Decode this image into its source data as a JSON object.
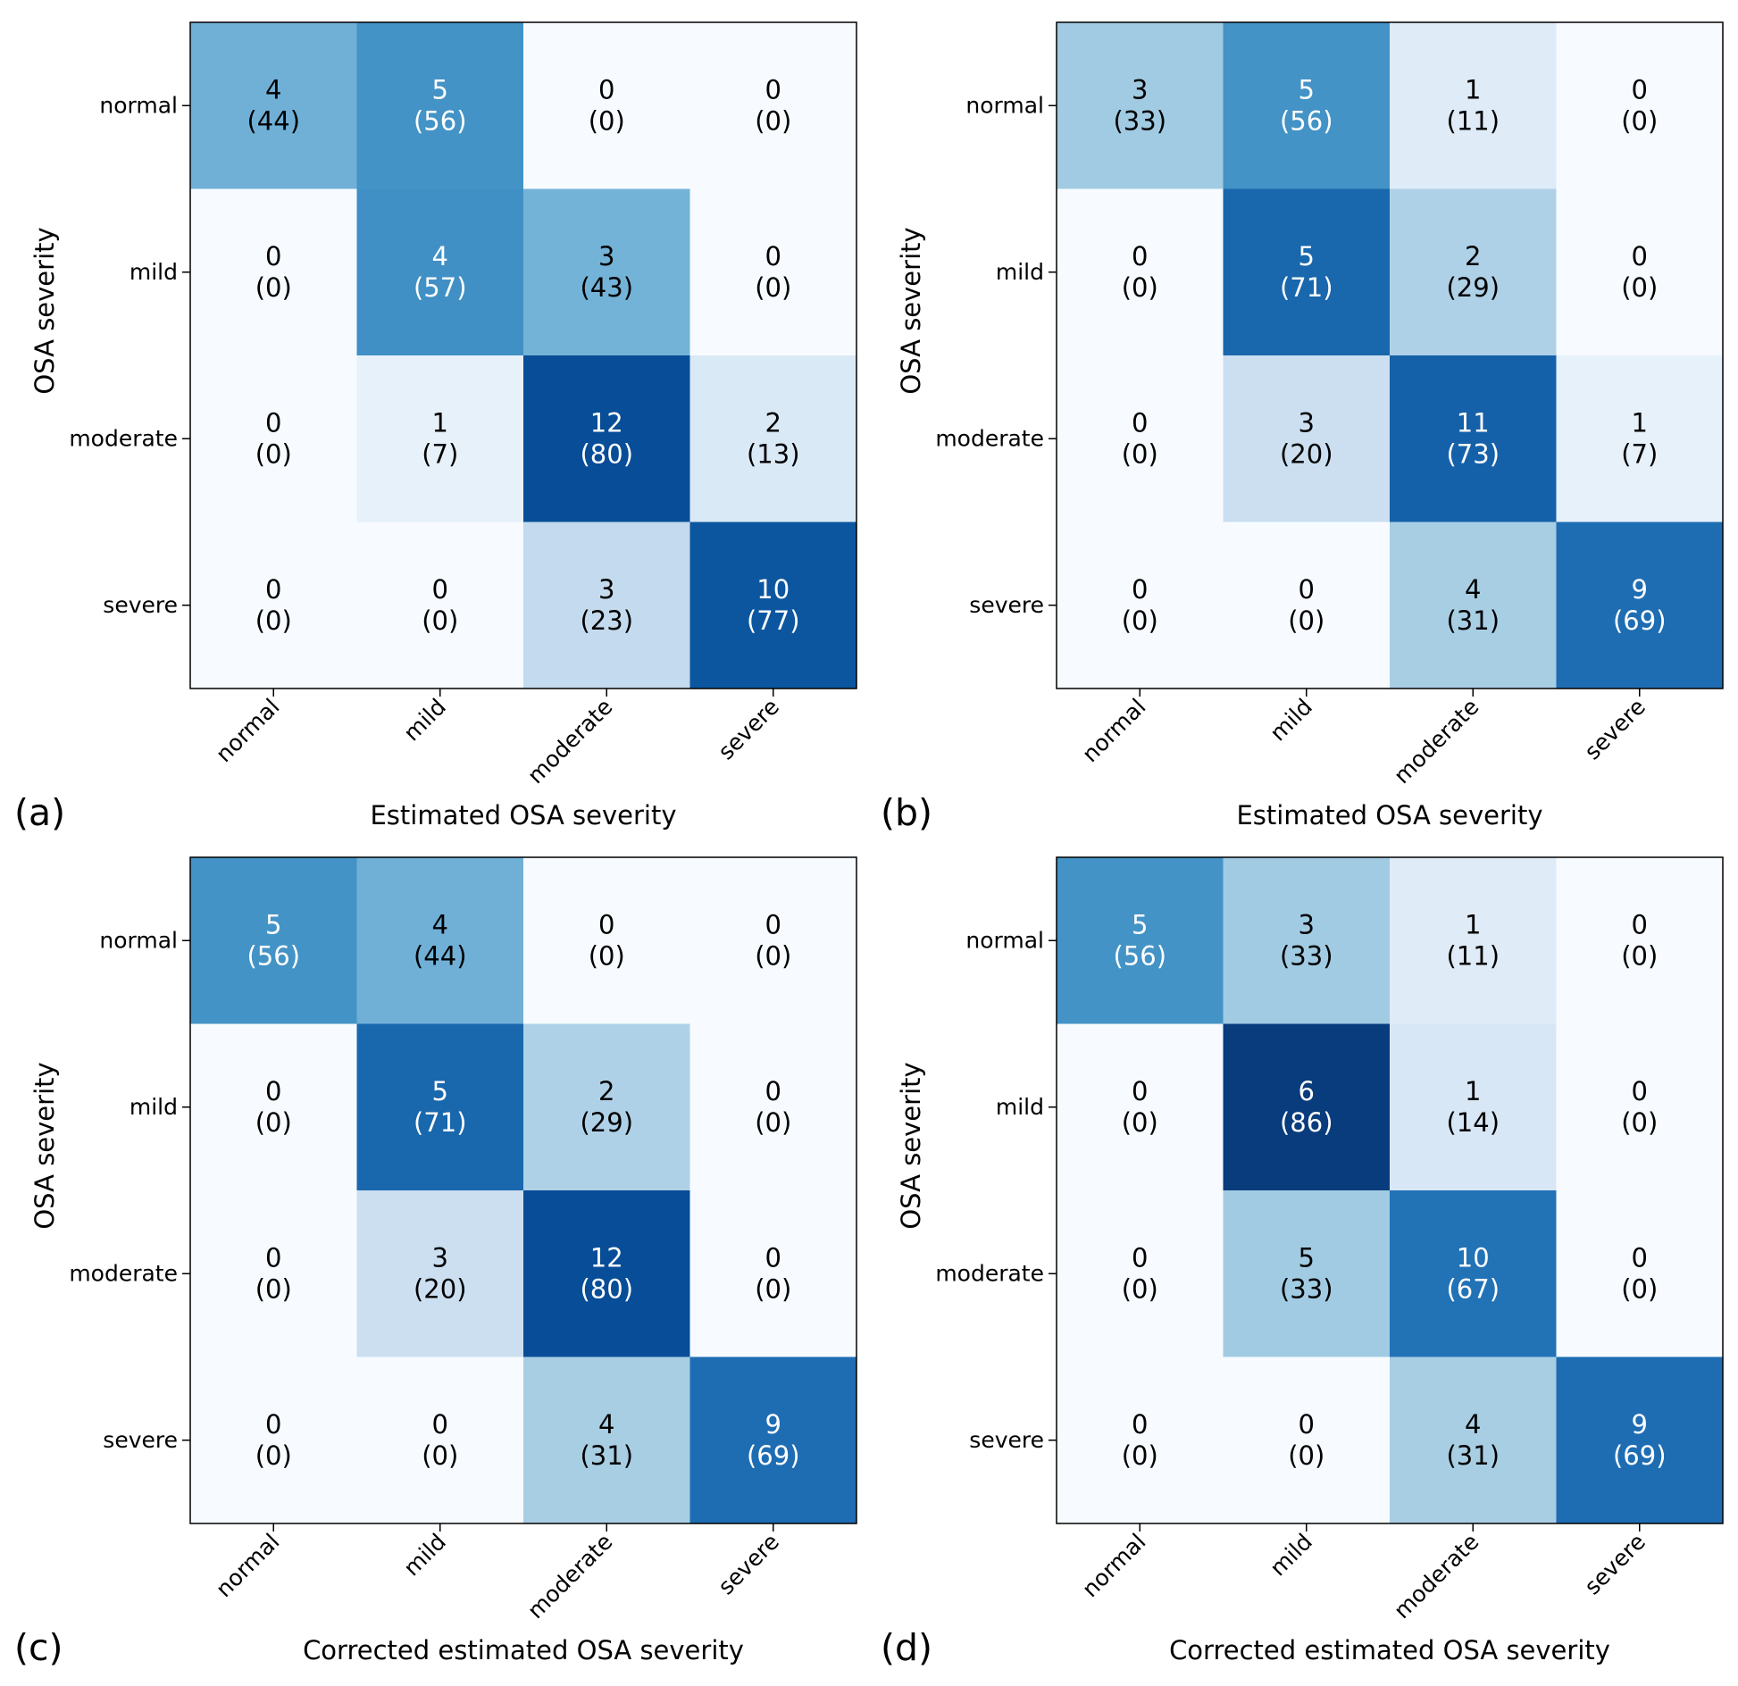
{
  "chart_data": [
    {
      "type": "heatmap",
      "panel_label": "(a)",
      "xlabel": "Estimated OSA severity",
      "ylabel": "OSA severity",
      "x_categories": [
        "normal",
        "mild",
        "moderate",
        "severe"
      ],
      "y_categories": [
        "normal",
        "mild",
        "moderate",
        "severe"
      ],
      "counts": [
        [
          4,
          5,
          0,
          0
        ],
        [
          0,
          4,
          3,
          0
        ],
        [
          0,
          1,
          12,
          2
        ],
        [
          0,
          0,
          3,
          10
        ]
      ],
      "percents": [
        [
          44,
          56,
          0,
          0
        ],
        [
          0,
          57,
          43,
          0
        ],
        [
          0,
          7,
          80,
          13
        ],
        [
          0,
          0,
          23,
          77
        ]
      ]
    },
    {
      "type": "heatmap",
      "panel_label": "(b)",
      "xlabel": "Estimated OSA severity",
      "ylabel": "OSA severity",
      "x_categories": [
        "normal",
        "mild",
        "moderate",
        "severe"
      ],
      "y_categories": [
        "normal",
        "mild",
        "moderate",
        "severe"
      ],
      "counts": [
        [
          3,
          5,
          1,
          0
        ],
        [
          0,
          5,
          2,
          0
        ],
        [
          0,
          3,
          11,
          1
        ],
        [
          0,
          0,
          4,
          9
        ]
      ],
      "percents": [
        [
          33,
          56,
          11,
          0
        ],
        [
          0,
          71,
          29,
          0
        ],
        [
          0,
          20,
          73,
          7
        ],
        [
          0,
          0,
          31,
          69
        ]
      ]
    },
    {
      "type": "heatmap",
      "panel_label": "(c)",
      "xlabel": "Corrected estimated OSA severity",
      "ylabel": "OSA severity",
      "x_categories": [
        "normal",
        "mild",
        "moderate",
        "severe"
      ],
      "y_categories": [
        "normal",
        "mild",
        "moderate",
        "severe"
      ],
      "counts": [
        [
          5,
          4,
          0,
          0
        ],
        [
          0,
          5,
          2,
          0
        ],
        [
          0,
          3,
          12,
          0
        ],
        [
          0,
          0,
          4,
          9
        ]
      ],
      "percents": [
        [
          56,
          44,
          0,
          0
        ],
        [
          0,
          71,
          29,
          0
        ],
        [
          0,
          20,
          80,
          0
        ],
        [
          0,
          0,
          31,
          69
        ]
      ]
    },
    {
      "type": "heatmap",
      "panel_label": "(d)",
      "xlabel": "Corrected estimated OSA severity",
      "ylabel": "OSA severity",
      "x_categories": [
        "normal",
        "mild",
        "moderate",
        "severe"
      ],
      "y_categories": [
        "normal",
        "mild",
        "moderate",
        "severe"
      ],
      "counts": [
        [
          5,
          3,
          1,
          0
        ],
        [
          0,
          6,
          1,
          0
        ],
        [
          0,
          5,
          10,
          0
        ],
        [
          0,
          0,
          4,
          9
        ]
      ],
      "percents": [
        [
          56,
          33,
          11,
          0
        ],
        [
          0,
          86,
          14,
          0
        ],
        [
          0,
          33,
          67,
          0
        ],
        [
          0,
          0,
          31,
          69
        ]
      ]
    }
  ],
  "colors": {
    "colormap": [
      "#f7fbff",
      "#deebf7",
      "#c6dbef",
      "#9ecae1",
      "#6baed6",
      "#4292c6",
      "#2171b5",
      "#08519c",
      "#08306b"
    ],
    "color_scale_max": 90,
    "text_dark": "#000000",
    "text_light": "#ffffff",
    "frame": "#000000"
  }
}
